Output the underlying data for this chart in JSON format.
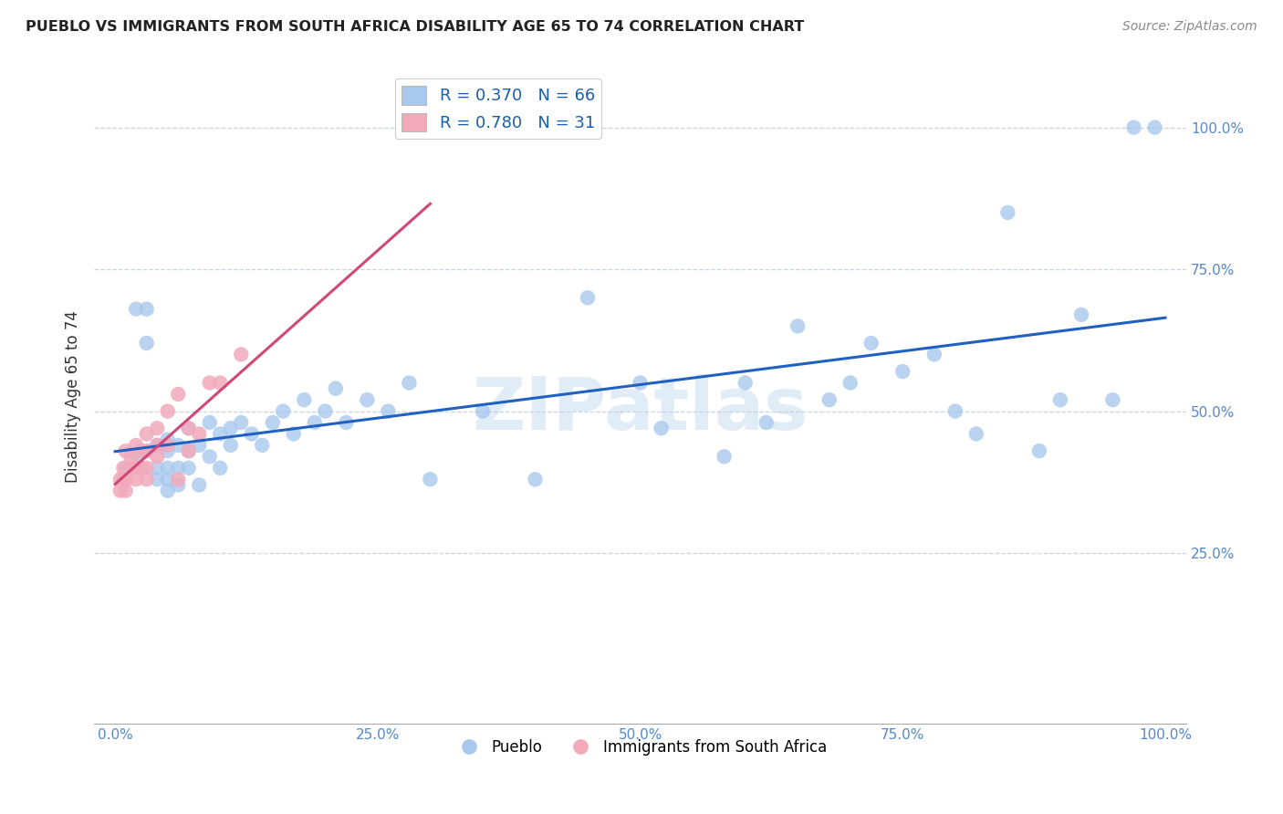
{
  "title": "PUEBLO VS IMMIGRANTS FROM SOUTH AFRICA DISABILITY AGE 65 TO 74 CORRELATION CHART",
  "source": "Source: ZipAtlas.com",
  "ylabel": "Disability Age 65 to 74",
  "x_tick_labels": [
    "0.0%",
    "25.0%",
    "50.0%",
    "75.0%",
    "100.0%"
  ],
  "x_tick_vals": [
    0.0,
    0.25,
    0.5,
    0.75,
    1.0
  ],
  "y_tick_labels": [
    "25.0%",
    "50.0%",
    "75.0%",
    "100.0%"
  ],
  "y_tick_vals": [
    0.25,
    0.5,
    0.75,
    1.0
  ],
  "xlim": [
    -0.02,
    1.02
  ],
  "ylim": [
    -0.05,
    1.1
  ],
  "blue_R": 0.37,
  "blue_N": 66,
  "pink_R": 0.78,
  "pink_N": 31,
  "blue_color": "#A8C8EE",
  "pink_color": "#F2AABB",
  "blue_line_color": "#2060C0",
  "pink_line_color": "#D04878",
  "blue_points_x": [
    0.01,
    0.02,
    0.02,
    0.03,
    0.03,
    0.03,
    0.04,
    0.04,
    0.04,
    0.05,
    0.05,
    0.05,
    0.05,
    0.05,
    0.06,
    0.06,
    0.06,
    0.07,
    0.07,
    0.07,
    0.08,
    0.08,
    0.09,
    0.09,
    0.1,
    0.1,
    0.11,
    0.11,
    0.12,
    0.13,
    0.14,
    0.15,
    0.16,
    0.17,
    0.18,
    0.19,
    0.2,
    0.21,
    0.22,
    0.24,
    0.26,
    0.28,
    0.3,
    0.35,
    0.4,
    0.45,
    0.5,
    0.52,
    0.58,
    0.6,
    0.62,
    0.65,
    0.68,
    0.7,
    0.72,
    0.75,
    0.78,
    0.8,
    0.82,
    0.85,
    0.88,
    0.9,
    0.92,
    0.95,
    0.97,
    0.99
  ],
  "blue_points_y": [
    0.4,
    0.68,
    0.42,
    0.68,
    0.62,
    0.43,
    0.4,
    0.44,
    0.38,
    0.43,
    0.45,
    0.38,
    0.4,
    0.36,
    0.44,
    0.4,
    0.37,
    0.43,
    0.47,
    0.4,
    0.44,
    0.37,
    0.48,
    0.42,
    0.46,
    0.4,
    0.47,
    0.44,
    0.48,
    0.46,
    0.44,
    0.48,
    0.5,
    0.46,
    0.52,
    0.48,
    0.5,
    0.54,
    0.48,
    0.52,
    0.5,
    0.55,
    0.38,
    0.5,
    0.38,
    0.7,
    0.55,
    0.47,
    0.42,
    0.55,
    0.48,
    0.65,
    0.52,
    0.55,
    0.62,
    0.57,
    0.6,
    0.5,
    0.46,
    0.85,
    0.43,
    0.52,
    0.67,
    0.52,
    1.0,
    1.0
  ],
  "pink_points_x": [
    0.005,
    0.005,
    0.008,
    0.008,
    0.01,
    0.01,
    0.01,
    0.015,
    0.015,
    0.02,
    0.02,
    0.02,
    0.025,
    0.025,
    0.03,
    0.03,
    0.03,
    0.03,
    0.04,
    0.04,
    0.04,
    0.05,
    0.05,
    0.06,
    0.06,
    0.07,
    0.07,
    0.08,
    0.09,
    0.1,
    0.12
  ],
  "pink_points_y": [
    0.38,
    0.36,
    0.4,
    0.38,
    0.36,
    0.38,
    0.43,
    0.42,
    0.4,
    0.38,
    0.4,
    0.44,
    0.4,
    0.43,
    0.38,
    0.4,
    0.43,
    0.46,
    0.42,
    0.44,
    0.47,
    0.44,
    0.5,
    0.38,
    0.53,
    0.43,
    0.47,
    0.46,
    0.55,
    0.55,
    0.6
  ],
  "watermark_text": "ZIPatlas"
}
